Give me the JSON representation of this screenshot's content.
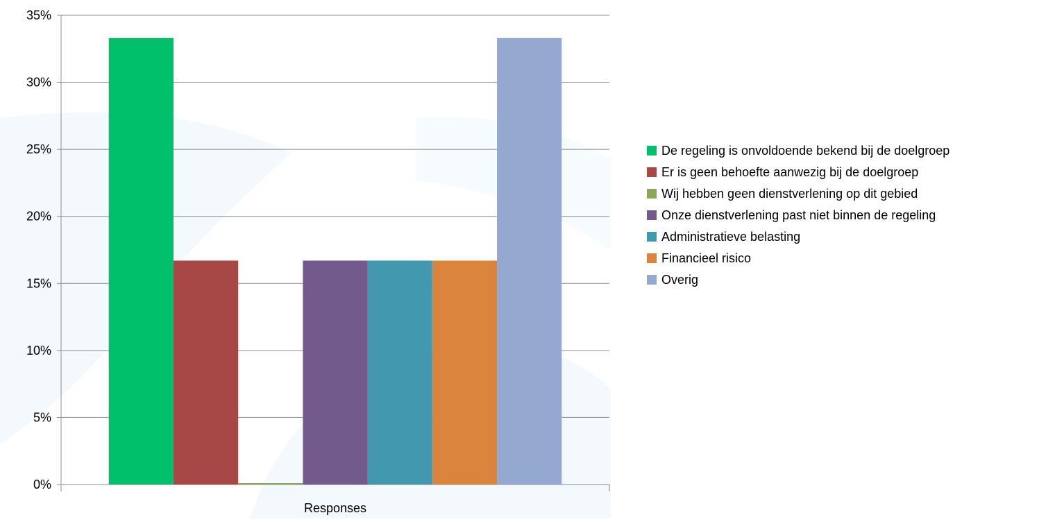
{
  "chart_data": {
    "type": "bar",
    "title": "",
    "xlabel": "",
    "ylabel": "",
    "categories": [
      "Responses"
    ],
    "ylim": [
      0,
      35
    ],
    "yticks": [
      0,
      5,
      10,
      15,
      20,
      25,
      30,
      35
    ],
    "ytick_labels": [
      "0%",
      "5%",
      "10%",
      "15%",
      "20%",
      "25%",
      "30%",
      "35%"
    ],
    "grid": true,
    "legend_position": "right",
    "series": [
      {
        "name": "De regeling is onvoldoende bekend bij de doelgroep",
        "values": [
          33.3
        ],
        "color": "#00C06B"
      },
      {
        "name": "Er is geen behoefte aanwezig bij de doelgroep",
        "values": [
          16.7
        ],
        "color": "#A84846"
      },
      {
        "name": "Wij hebben geen dienstverlening op dit gebied",
        "values": [
          0
        ],
        "color": "#8CA55A"
      },
      {
        "name": "Onze dienstverlening past niet binnen de regeling",
        "values": [
          16.7
        ],
        "color": "#725A8C"
      },
      {
        "name": "Administratieve belasting",
        "values": [
          16.7
        ],
        "color": "#4198AF"
      },
      {
        "name": "Financieel risico",
        "values": [
          16.7
        ],
        "color": "#DB843D"
      },
      {
        "name": "Overig",
        "values": [
          33.3
        ],
        "color": "#95A9D0"
      }
    ]
  }
}
